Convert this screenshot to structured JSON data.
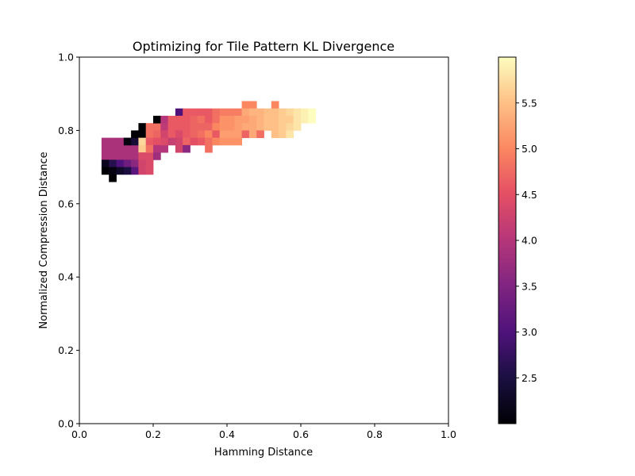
{
  "chart_data": {
    "type": "heatmap",
    "title": "Optimizing for Tile Pattern KL Divergence",
    "xlabel": "Hamming Distance",
    "ylabel": "Normalized Compression Distance",
    "xlim": [
      0.0,
      1.0
    ],
    "ylim": [
      0.0,
      1.0
    ],
    "x_ticks": [
      "0.0",
      "0.2",
      "0.4",
      "0.6",
      "0.8",
      "1.0"
    ],
    "y_ticks": [
      "0.0",
      "0.2",
      "0.4",
      "0.6",
      "0.8",
      "1.0"
    ],
    "bin_size": 0.02,
    "colormap": "magma",
    "colorbar": {
      "vmin": 2.0,
      "vmax": 6.0,
      "ticks": [
        "2.5",
        "3.0",
        "3.5",
        "4.0",
        "4.5",
        "5.0",
        "5.5"
      ]
    },
    "cells": [
      [
        0.06,
        0.76,
        3.9
      ],
      [
        0.08,
        0.76,
        3.9
      ],
      [
        0.1,
        0.76,
        3.9
      ],
      [
        0.12,
        0.76,
        3.9
      ],
      [
        0.06,
        0.74,
        3.9
      ],
      [
        0.08,
        0.74,
        3.9
      ],
      [
        0.1,
        0.74,
        3.9
      ],
      [
        0.12,
        0.74,
        3.9
      ],
      [
        0.14,
        0.74,
        3.9
      ],
      [
        0.06,
        0.72,
        3.9
      ],
      [
        0.08,
        0.72,
        3.9
      ],
      [
        0.1,
        0.72,
        3.9
      ],
      [
        0.12,
        0.72,
        3.9
      ],
      [
        0.14,
        0.72,
        3.9
      ],
      [
        0.06,
        0.7,
        2.2
      ],
      [
        0.08,
        0.7,
        2.6
      ],
      [
        0.1,
        0.7,
        3.0
      ],
      [
        0.12,
        0.7,
        3.3
      ],
      [
        0.14,
        0.7,
        3.6
      ],
      [
        0.06,
        0.68,
        2.0
      ],
      [
        0.08,
        0.68,
        2.1
      ],
      [
        0.1,
        0.68,
        2.3
      ],
      [
        0.12,
        0.68,
        2.5
      ],
      [
        0.14,
        0.68,
        3.1
      ],
      [
        0.08,
        0.66,
        2.0
      ],
      [
        0.12,
        0.76,
        2.1
      ],
      [
        0.14,
        0.76,
        2.4
      ],
      [
        0.14,
        0.78,
        2.0
      ],
      [
        0.16,
        0.78,
        2.0
      ],
      [
        0.16,
        0.8,
        2.0
      ],
      [
        0.16,
        0.76,
        5.7
      ],
      [
        0.16,
        0.74,
        5.6
      ],
      [
        0.16,
        0.72,
        4.4
      ],
      [
        0.18,
        0.72,
        4.4
      ],
      [
        0.16,
        0.7,
        4.3
      ],
      [
        0.18,
        0.7,
        4.4
      ],
      [
        0.16,
        0.68,
        4.3
      ],
      [
        0.18,
        0.68,
        4.4
      ],
      [
        0.18,
        0.8,
        4.8
      ],
      [
        0.2,
        0.8,
        4.8
      ],
      [
        0.18,
        0.78,
        4.8
      ],
      [
        0.2,
        0.78,
        4.7
      ],
      [
        0.18,
        0.76,
        4.6
      ],
      [
        0.2,
        0.76,
        4.5
      ],
      [
        0.18,
        0.74,
        4.8
      ],
      [
        0.2,
        0.74,
        4.0
      ],
      [
        0.2,
        0.72,
        3.8
      ],
      [
        0.22,
        0.74,
        4.0
      ],
      [
        0.2,
        0.82,
        2.0
      ],
      [
        0.22,
        0.82,
        4.0
      ],
      [
        0.22,
        0.8,
        4.1
      ],
      [
        0.22,
        0.78,
        4.3
      ],
      [
        0.22,
        0.76,
        4.4
      ],
      [
        0.24,
        0.82,
        4.6
      ],
      [
        0.24,
        0.8,
        4.6
      ],
      [
        0.24,
        0.78,
        4.6
      ],
      [
        0.24,
        0.76,
        4.2
      ],
      [
        0.26,
        0.84,
        3.0
      ],
      [
        0.26,
        0.82,
        4.6
      ],
      [
        0.26,
        0.8,
        4.6
      ],
      [
        0.26,
        0.78,
        4.4
      ],
      [
        0.26,
        0.76,
        4.3
      ],
      [
        0.26,
        0.74,
        4.3
      ],
      [
        0.28,
        0.84,
        4.6
      ],
      [
        0.28,
        0.82,
        4.6
      ],
      [
        0.28,
        0.8,
        4.6
      ],
      [
        0.28,
        0.78,
        4.6
      ],
      [
        0.28,
        0.76,
        4.7
      ],
      [
        0.28,
        0.74,
        3.6
      ],
      [
        0.3,
        0.84,
        4.6
      ],
      [
        0.3,
        0.82,
        4.7
      ],
      [
        0.3,
        0.8,
        4.7
      ],
      [
        0.3,
        0.78,
        4.7
      ],
      [
        0.3,
        0.76,
        4.5
      ],
      [
        0.32,
        0.84,
        4.6
      ],
      [
        0.32,
        0.82,
        4.8
      ],
      [
        0.32,
        0.8,
        4.7
      ],
      [
        0.32,
        0.78,
        4.8
      ],
      [
        0.32,
        0.76,
        4.6
      ],
      [
        0.34,
        0.84,
        4.6
      ],
      [
        0.34,
        0.82,
        4.6
      ],
      [
        0.34,
        0.8,
        4.7
      ],
      [
        0.34,
        0.78,
        5.0
      ],
      [
        0.34,
        0.76,
        4.8
      ],
      [
        0.34,
        0.74,
        4.8
      ],
      [
        0.36,
        0.84,
        4.8
      ],
      [
        0.36,
        0.82,
        4.8
      ],
      [
        0.36,
        0.8,
        5.0
      ],
      [
        0.36,
        0.78,
        4.6
      ],
      [
        0.36,
        0.76,
        5.0
      ],
      [
        0.38,
        0.84,
        4.9
      ],
      [
        0.38,
        0.82,
        5.1
      ],
      [
        0.38,
        0.8,
        5.1
      ],
      [
        0.38,
        0.78,
        5.2
      ],
      [
        0.38,
        0.76,
        5.1
      ],
      [
        0.4,
        0.84,
        4.9
      ],
      [
        0.4,
        0.82,
        5.1
      ],
      [
        0.4,
        0.8,
        5.1
      ],
      [
        0.4,
        0.78,
        5.2
      ],
      [
        0.4,
        0.76,
        5.1
      ],
      [
        0.42,
        0.84,
        4.9
      ],
      [
        0.42,
        0.82,
        5.2
      ],
      [
        0.42,
        0.8,
        5.2
      ],
      [
        0.42,
        0.78,
        5.2
      ],
      [
        0.42,
        0.76,
        5.1
      ],
      [
        0.44,
        0.86,
        5.0
      ],
      [
        0.44,
        0.84,
        5.3
      ],
      [
        0.44,
        0.82,
        5.2
      ],
      [
        0.44,
        0.8,
        5.3
      ],
      [
        0.44,
        0.78,
        4.7
      ],
      [
        0.46,
        0.86,
        5.0
      ],
      [
        0.46,
        0.84,
        5.4
      ],
      [
        0.46,
        0.82,
        5.3
      ],
      [
        0.46,
        0.8,
        5.3
      ],
      [
        0.46,
        0.78,
        5.3
      ],
      [
        0.48,
        0.84,
        5.4
      ],
      [
        0.48,
        0.82,
        5.4
      ],
      [
        0.48,
        0.8,
        5.4
      ],
      [
        0.48,
        0.78,
        4.8
      ],
      [
        0.5,
        0.84,
        5.5
      ],
      [
        0.5,
        0.82,
        5.5
      ],
      [
        0.5,
        0.8,
        5.5
      ],
      [
        0.52,
        0.86,
        5.0
      ],
      [
        0.52,
        0.84,
        5.5
      ],
      [
        0.52,
        0.82,
        5.5
      ],
      [
        0.52,
        0.8,
        5.5
      ],
      [
        0.52,
        0.78,
        5.5
      ],
      [
        0.54,
        0.84,
        5.6
      ],
      [
        0.54,
        0.82,
        5.6
      ],
      [
        0.54,
        0.8,
        5.6
      ],
      [
        0.54,
        0.78,
        5.6
      ],
      [
        0.56,
        0.84,
        5.7
      ],
      [
        0.56,
        0.82,
        5.6
      ],
      [
        0.56,
        0.8,
        5.7
      ],
      [
        0.56,
        0.78,
        5.8
      ],
      [
        0.58,
        0.84,
        5.8
      ],
      [
        0.58,
        0.82,
        5.8
      ],
      [
        0.58,
        0.8,
        5.8
      ],
      [
        0.6,
        0.84,
        5.9
      ],
      [
        0.6,
        0.82,
        5.9
      ],
      [
        0.62,
        0.84,
        6.0
      ],
      [
        0.62,
        0.82,
        6.0
      ]
    ]
  }
}
